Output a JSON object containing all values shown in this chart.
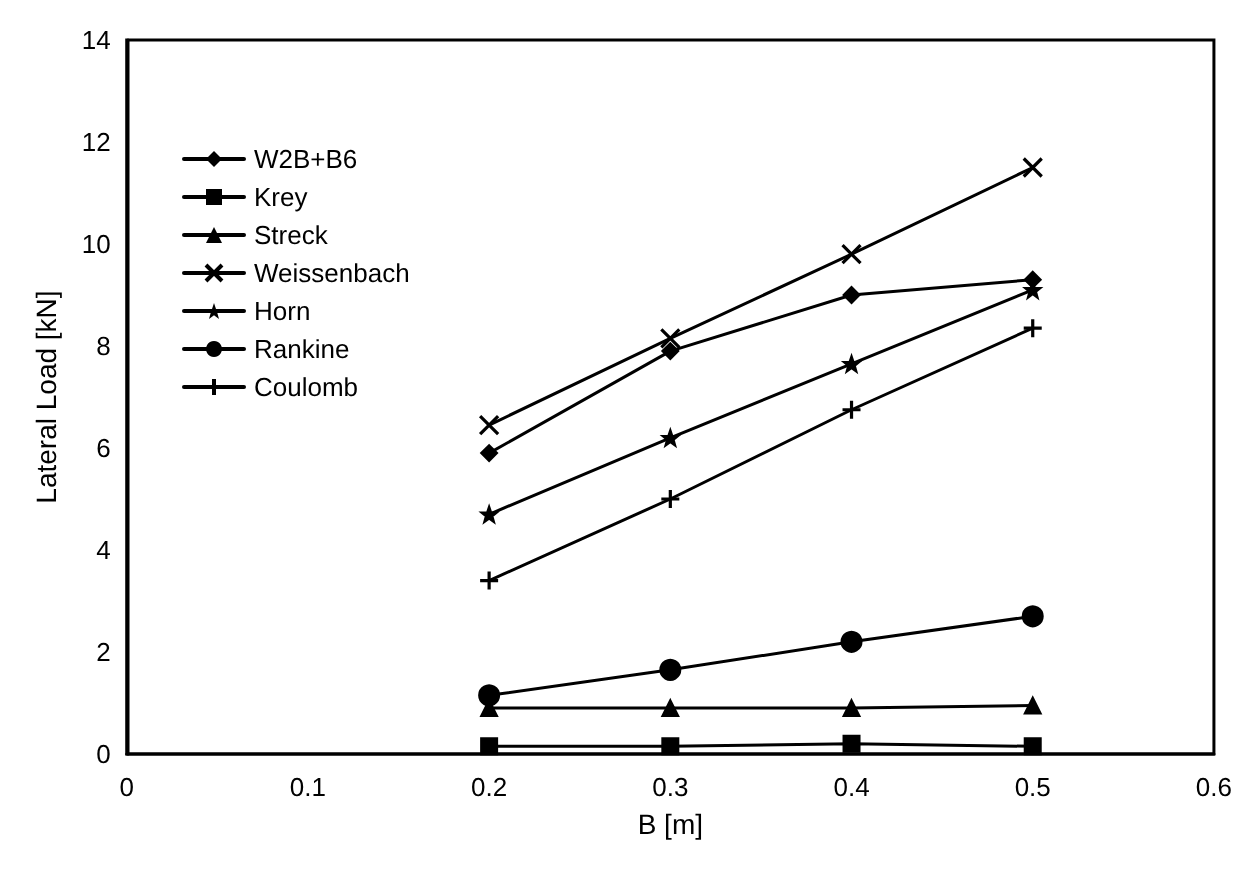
{
  "chart_data": {
    "type": "line",
    "xlabel": "B [m]",
    "ylabel": "Lateral Load [kN]",
    "x": [
      0.2,
      0.3,
      0.4,
      0.5
    ],
    "xlim": [
      0,
      0.6
    ],
    "xticks": [
      0,
      0.1,
      0.2,
      0.3,
      0.4,
      0.5,
      0.6
    ],
    "ylim": [
      0,
      14
    ],
    "yticks": [
      0,
      2,
      4,
      6,
      8,
      10,
      12,
      14
    ],
    "grid": false,
    "legend": "top left",
    "line_style": "solid",
    "series": [
      {
        "name": "W2B+B6",
        "color": "#000000",
        "marker": "diamond",
        "values": [
          5.9,
          7.9,
          9.0,
          9.3
        ]
      },
      {
        "name": "Krey",
        "color": "#000000",
        "marker": "square",
        "values": [
          0.15,
          0.15,
          0.2,
          0.15
        ]
      },
      {
        "name": "Streck",
        "color": "#000000",
        "marker": "triangle",
        "values": [
          0.9,
          0.9,
          0.9,
          0.95
        ]
      },
      {
        "name": "Weissenbach",
        "color": "#000000",
        "marker": "cross",
        "values": [
          6.45,
          8.15,
          9.8,
          11.5
        ]
      },
      {
        "name": "Horn",
        "color": "#000000",
        "marker": "star",
        "values": [
          4.7,
          6.2,
          7.65,
          9.1
        ]
      },
      {
        "name": "Rankine",
        "color": "#000000",
        "marker": "circle",
        "values": [
          1.15,
          1.65,
          2.2,
          2.7
        ]
      },
      {
        "name": "Coulomb",
        "color": "#000000",
        "marker": "plus",
        "values": [
          3.4,
          5.0,
          6.75,
          8.35
        ]
      }
    ]
  }
}
